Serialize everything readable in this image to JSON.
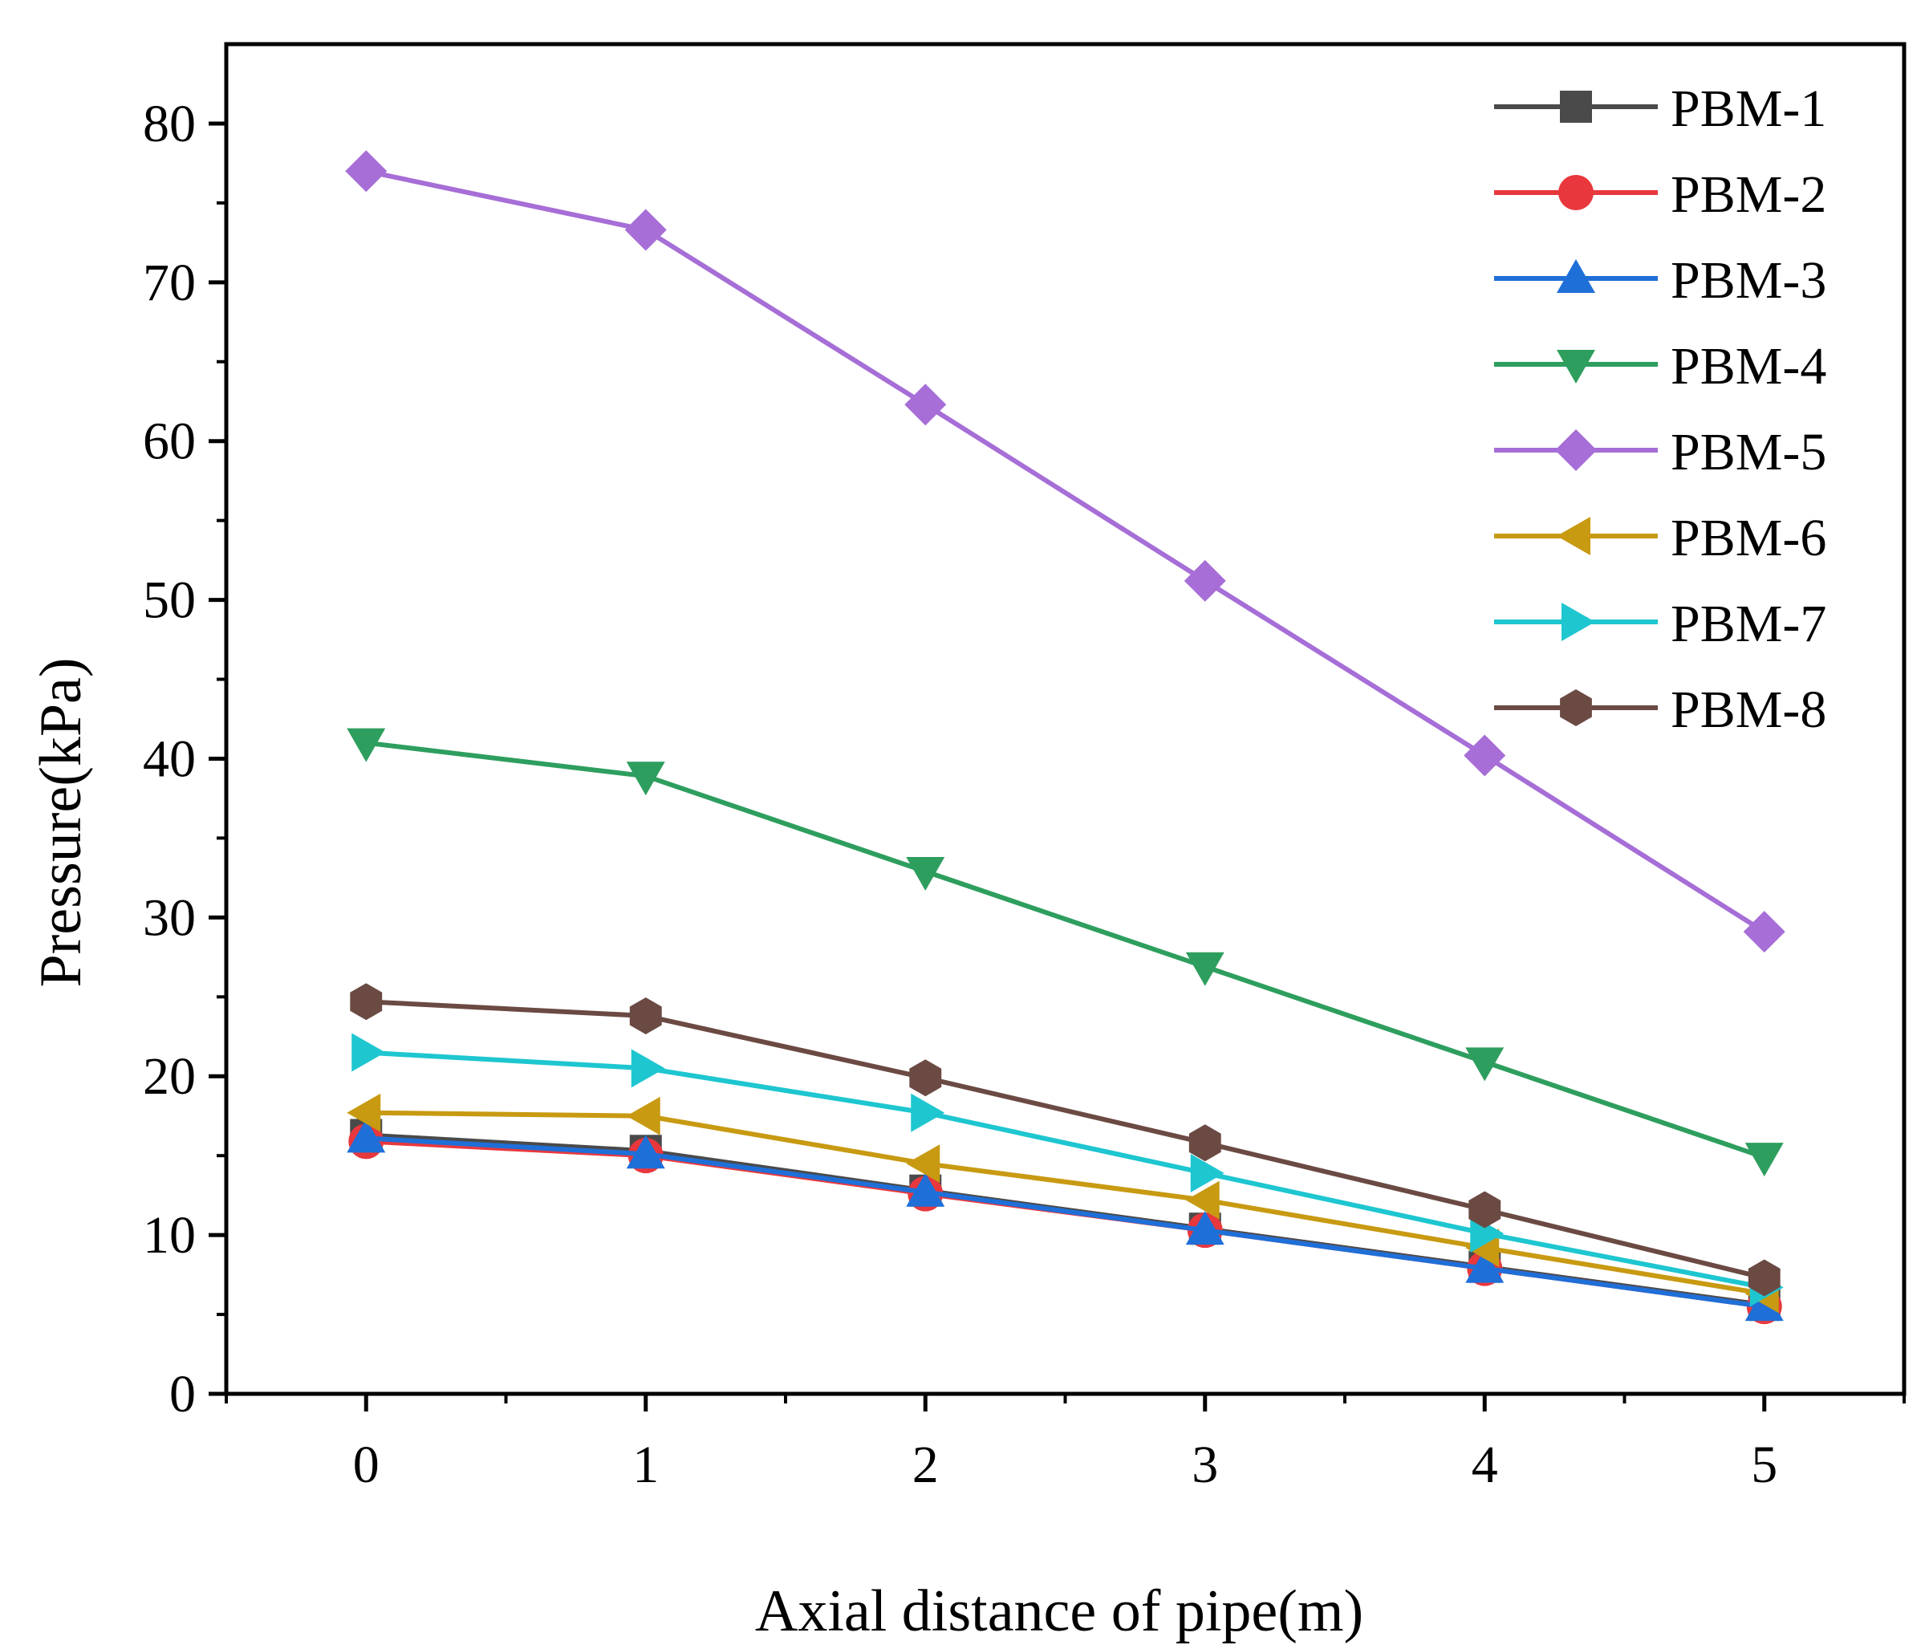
{
  "chart_data": {
    "type": "line",
    "title": "",
    "xlabel": "Axial distance of pipe(m)",
    "ylabel": "Pressure(kPa)",
    "xlim": [
      -0.5,
      5.5
    ],
    "ylim": [
      0,
      85
    ],
    "x": [
      0,
      1,
      2,
      3,
      4,
      5
    ],
    "xticks": [
      0,
      1,
      2,
      3,
      4,
      5
    ],
    "yticks": [
      0,
      10,
      20,
      30,
      40,
      50,
      60,
      70,
      80
    ],
    "legend_position": "top-right",
    "grid": false,
    "series": [
      {
        "name": "PBM-1",
        "color": "#4a4a4a",
        "marker": "square",
        "values": [
          16.3,
          15.3,
          12.8,
          10.4,
          8.0,
          5.6
        ]
      },
      {
        "name": "PBM-2",
        "color": "#e8383d",
        "marker": "circle",
        "values": [
          15.9,
          15.0,
          12.6,
          10.3,
          7.9,
          5.5
        ]
      },
      {
        "name": "PBM-3",
        "color": "#1f6fd8",
        "marker": "triangle-up",
        "values": [
          16.1,
          15.1,
          12.7,
          10.3,
          7.9,
          5.5
        ]
      },
      {
        "name": "PBM-4",
        "color": "#2e9e5e",
        "marker": "triangle-down",
        "values": [
          41.0,
          38.9,
          32.9,
          26.9,
          20.9,
          14.9
        ]
      },
      {
        "name": "PBM-5",
        "color": "#a66ed6",
        "marker": "diamond",
        "values": [
          77.0,
          73.3,
          62.3,
          51.2,
          40.2,
          29.1
        ]
      },
      {
        "name": "PBM-6",
        "color": "#c89a12",
        "marker": "triangle-left",
        "values": [
          17.7,
          17.5,
          14.5,
          12.2,
          9.2,
          6.3
        ]
      },
      {
        "name": "PBM-7",
        "color": "#1ec6d0",
        "marker": "triangle-right",
        "values": [
          21.5,
          20.5,
          17.7,
          13.9,
          10.1,
          6.7
        ]
      },
      {
        "name": "PBM-8",
        "color": "#6b4a43",
        "marker": "hexagon",
        "values": [
          24.7,
          23.8,
          19.9,
          15.8,
          11.6,
          7.3
        ]
      }
    ]
  }
}
